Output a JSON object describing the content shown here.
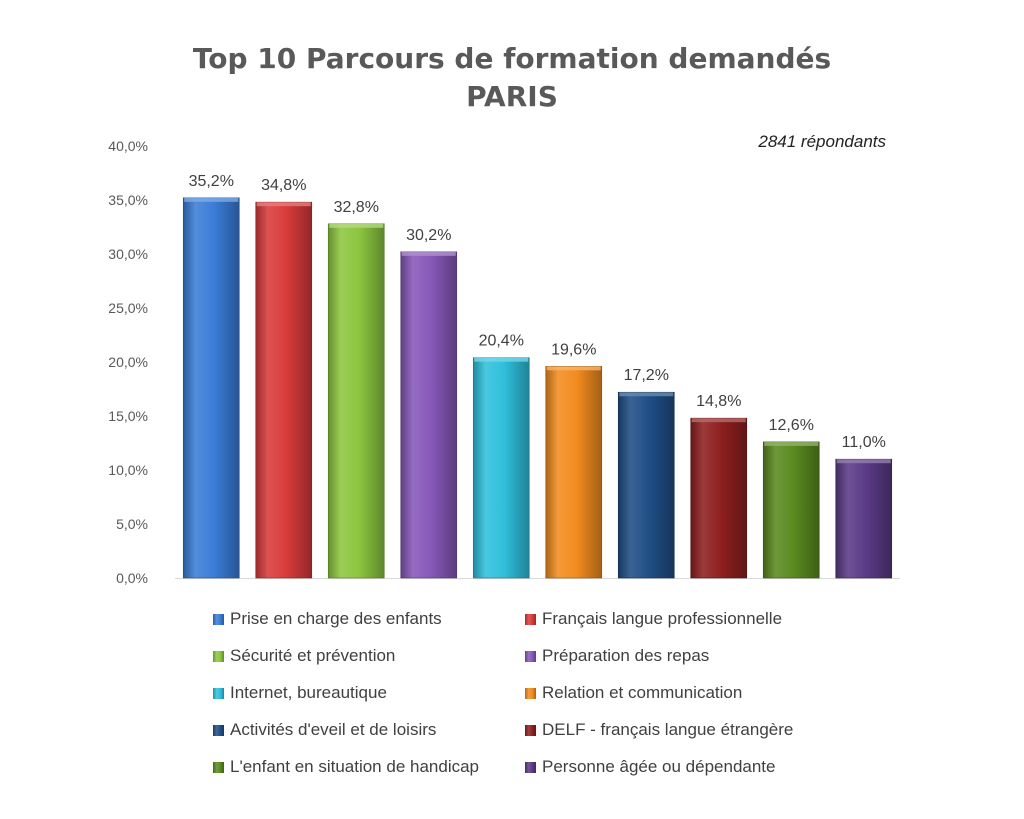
{
  "chart_data": {
    "type": "bar",
    "title": "Top 10 Parcours de formation demandés",
    "subtitle": "PARIS",
    "annotation": "2841 répondants",
    "categories": [
      "Prise en charge des enfants",
      "Français langue professionnelle",
      "Sécurité et prévention",
      "Préparation des repas",
      "Internet, bureautique",
      "Relation et communication",
      "Activités d'eveil et de loisirs",
      "DELF - français langue étrangère",
      "L'enfant en situation de handicap",
      "Personne âgée ou dépendante"
    ],
    "values": [
      35.2,
      34.8,
      32.8,
      30.2,
      20.4,
      19.6,
      17.2,
      14.8,
      12.6,
      11.0
    ],
    "value_labels": [
      "35,2%",
      "34,8%",
      "32,8%",
      "30,2%",
      "20,4%",
      "19,6%",
      "17,2%",
      "14,8%",
      "12,6%",
      "11,0%"
    ],
    "colors": [
      "#3B7DD8",
      "#D93B3B",
      "#8CC63F",
      "#8658B8",
      "#2FC0DC",
      "#F28C1E",
      "#1F4E86",
      "#8E1F1F",
      "#5A8A1F",
      "#5A3A86"
    ],
    "ylim": [
      0,
      40
    ],
    "yticks": [
      0,
      5,
      10,
      15,
      20,
      25,
      30,
      35,
      40
    ],
    "ytick_labels": [
      "0,0%",
      "5,0%",
      "10,0%",
      "15,0%",
      "20,0%",
      "25,0%",
      "30,0%",
      "35,0%",
      "40,0%"
    ],
    "grid": false,
    "legend_position": "bottom"
  }
}
